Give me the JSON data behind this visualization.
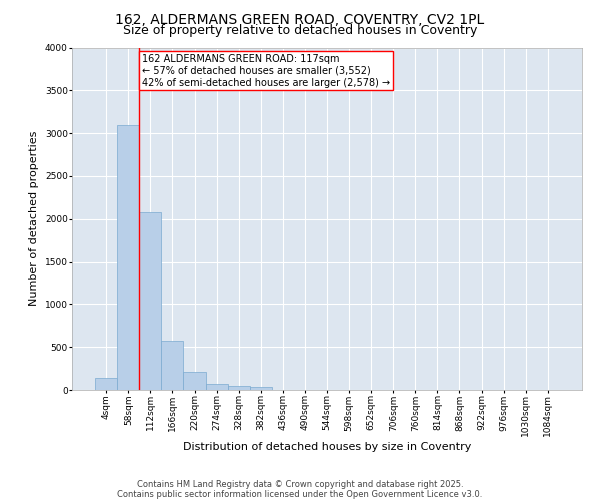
{
  "title_line1": "162, ALDERMANS GREEN ROAD, COVENTRY, CV2 1PL",
  "title_line2": "Size of property relative to detached houses in Coventry",
  "xlabel": "Distribution of detached houses by size in Coventry",
  "ylabel": "Number of detached properties",
  "bar_color": "#b8cfe8",
  "bar_edge_color": "#7aaad0",
  "bg_color": "#dde6f0",
  "grid_color": "#ffffff",
  "categories": [
    "4sqm",
    "58sqm",
    "112sqm",
    "166sqm",
    "220sqm",
    "274sqm",
    "328sqm",
    "382sqm",
    "436sqm",
    "490sqm",
    "544sqm",
    "598sqm",
    "652sqm",
    "706sqm",
    "760sqm",
    "814sqm",
    "868sqm",
    "922sqm",
    "976sqm",
    "1030sqm",
    "1084sqm"
  ],
  "values": [
    140,
    3100,
    2080,
    570,
    205,
    75,
    45,
    30,
    0,
    0,
    0,
    0,
    0,
    0,
    0,
    0,
    0,
    0,
    0,
    0,
    0
  ],
  "annotation_line1": "162 ALDERMANS GREEN ROAD: 117sqm",
  "annotation_line2": "← 57% of detached houses are smaller (3,552)",
  "annotation_line3": "42% of semi-detached houses are larger (2,578) →",
  "vline_x": 1.5,
  "ylim": [
    0,
    4000
  ],
  "yticks": [
    0,
    500,
    1000,
    1500,
    2000,
    2500,
    3000,
    3500,
    4000
  ],
  "footer_line1": "Contains HM Land Registry data © Crown copyright and database right 2025.",
  "footer_line2": "Contains public sector information licensed under the Open Government Licence v3.0.",
  "title_fontsize": 10,
  "subtitle_fontsize": 9,
  "axis_label_fontsize": 8,
  "tick_fontsize": 6.5,
  "annotation_fontsize": 7,
  "footer_fontsize": 6
}
